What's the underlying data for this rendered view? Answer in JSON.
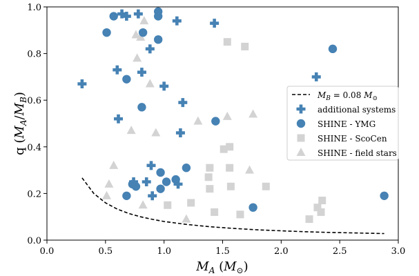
{
  "chart_data": {
    "type": "scatter",
    "xlabel": "M_A (M_⊙)",
    "ylabel": "q (M_A/M_B)",
    "xlim": [
      0.0,
      3.0
    ],
    "ylim": [
      0.0,
      1.0
    ],
    "xticks": [
      "0.0",
      "0.5",
      "1.0",
      "1.5",
      "2.0",
      "2.5",
      "3.0"
    ],
    "yticks": [
      "0.0",
      "0.2",
      "0.4",
      "0.6",
      "0.8",
      "1.0"
    ],
    "grid": false,
    "legend_position": "center-right",
    "colors": {
      "blue": "#4682b4",
      "gray": "#d3d3d3",
      "line": "#000000"
    },
    "series": [
      {
        "name": "M_B = 0.08 M_⊙",
        "kind": "line",
        "style": "dashed",
        "color": "#000000",
        "points": [
          [
            0.3,
            0.267
          ],
          [
            0.4,
            0.2
          ],
          [
            0.5,
            0.16
          ],
          [
            0.6,
            0.133
          ],
          [
            0.7,
            0.114
          ],
          [
            0.8,
            0.1
          ],
          [
            0.9,
            0.089
          ],
          [
            1.0,
            0.08
          ],
          [
            1.2,
            0.067
          ],
          [
            1.4,
            0.057
          ],
          [
            1.6,
            0.05
          ],
          [
            1.8,
            0.044
          ],
          [
            2.0,
            0.04
          ],
          [
            2.2,
            0.036
          ],
          [
            2.4,
            0.033
          ],
          [
            2.6,
            0.031
          ],
          [
            2.88,
            0.028
          ]
        ]
      },
      {
        "name": "additional systems",
        "kind": "marker",
        "marker": "plus",
        "color": "#4682b4",
        "points": [
          [
            0.3,
            0.67
          ],
          [
            0.6,
            0.73
          ],
          [
            0.61,
            0.52
          ],
          [
            0.64,
            0.97
          ],
          [
            0.68,
            0.96
          ],
          [
            0.78,
            0.97
          ],
          [
            0.81,
            0.72
          ],
          [
            0.88,
            0.82
          ],
          [
            0.89,
            0.32
          ],
          [
            0.9,
            0.19
          ],
          [
            1.0,
            0.66
          ],
          [
            1.12,
            0.24
          ],
          [
            1.14,
            0.46
          ],
          [
            1.16,
            0.59
          ],
          [
            1.11,
            0.94
          ],
          [
            1.43,
            0.93
          ],
          [
            2.3,
            0.7
          ],
          [
            0.74,
            0.25
          ],
          [
            0.85,
            0.25
          ]
        ]
      },
      {
        "name": "SHINE - YMG",
        "kind": "marker",
        "marker": "circle",
        "color": "#4682b4",
        "points": [
          [
            0.51,
            0.89
          ],
          [
            0.57,
            0.96
          ],
          [
            0.68,
            0.69
          ],
          [
            0.68,
            0.19
          ],
          [
            0.73,
            0.24
          ],
          [
            0.76,
            0.23
          ],
          [
            0.81,
            0.57
          ],
          [
            0.82,
            0.89
          ],
          [
            0.95,
            0.98
          ],
          [
            0.95,
            0.96
          ],
          [
            0.95,
            0.86
          ],
          [
            0.97,
            0.29
          ],
          [
            0.97,
            0.22
          ],
          [
            1.02,
            0.25
          ],
          [
            1.1,
            0.26
          ],
          [
            1.19,
            0.31
          ],
          [
            1.44,
            0.51
          ],
          [
            1.76,
            0.14
          ],
          [
            2.44,
            0.82
          ],
          [
            2.88,
            0.19
          ]
        ]
      },
      {
        "name": "SHINE - ScoCen",
        "kind": "marker",
        "marker": "square",
        "color": "#d3d3d3",
        "points": [
          [
            1.03,
            0.15
          ],
          [
            1.23,
            0.16
          ],
          [
            1.38,
            0.27
          ],
          [
            1.39,
            0.31
          ],
          [
            1.39,
            0.22
          ],
          [
            1.43,
            0.12
          ],
          [
            1.51,
            0.39
          ],
          [
            1.54,
            0.85
          ],
          [
            1.56,
            0.31
          ],
          [
            1.56,
            0.4
          ],
          [
            1.57,
            0.23
          ],
          [
            1.65,
            0.11
          ],
          [
            1.69,
            0.83
          ],
          [
            1.87,
            0.23
          ],
          [
            2.24,
            0.09
          ],
          [
            2.31,
            0.14
          ],
          [
            2.34,
            0.12
          ],
          [
            2.35,
            0.17
          ]
        ]
      },
      {
        "name": "SHINE - field stars",
        "kind": "marker",
        "marker": "triangle",
        "color": "#d3d3d3",
        "points": [
          [
            0.51,
            0.19
          ],
          [
            0.53,
            0.24
          ],
          [
            0.57,
            0.32
          ],
          [
            0.72,
            0.47
          ],
          [
            0.76,
            0.88
          ],
          [
            0.77,
            0.78
          ],
          [
            0.8,
            0.87
          ],
          [
            0.82,
            0.15
          ],
          [
            0.83,
            0.94
          ],
          [
            0.88,
            0.67
          ],
          [
            0.93,
            0.46
          ],
          [
            1.19,
            0.09
          ],
          [
            1.29,
            0.51
          ],
          [
            1.54,
            0.53
          ],
          [
            1.73,
            0.3
          ],
          [
            1.76,
            0.54
          ]
        ]
      }
    ]
  }
}
